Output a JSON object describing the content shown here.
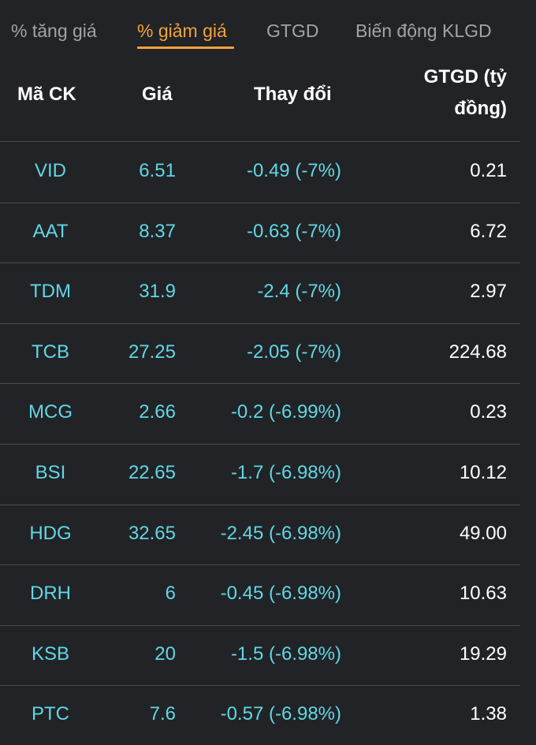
{
  "tabs": [
    {
      "label": "% tăng giá",
      "active": false
    },
    {
      "label": "% giảm giá",
      "active": true
    },
    {
      "label": "GTGD",
      "active": false
    },
    {
      "label": "Biến động KLGD",
      "active": false
    }
  ],
  "colors": {
    "background": "#222326",
    "active_tab": "#f3a33a",
    "inactive_tab": "#a3a4a8",
    "decline": "#5fd8e6",
    "text": "#ffffff",
    "divider": "#4a4b4f"
  },
  "table": {
    "headers": {
      "code": "Mã CK",
      "price": "Giá",
      "change": "Thay đổi",
      "value": "GTGD (tỷ đồng)"
    },
    "rows": [
      {
        "code": "VID",
        "price": "6.51",
        "change": "-0.49 (-7%)",
        "value": "0.21"
      },
      {
        "code": "AAT",
        "price": "8.37",
        "change": "-0.63 (-7%)",
        "value": "6.72"
      },
      {
        "code": "TDM",
        "price": "31.9",
        "change": "-2.4 (-7%)",
        "value": "2.97"
      },
      {
        "code": "TCB",
        "price": "27.25",
        "change": "-2.05 (-7%)",
        "value": "224.68"
      },
      {
        "code": "MCG",
        "price": "2.66",
        "change": "-0.2 (-6.99%)",
        "value": "0.23"
      },
      {
        "code": "BSI",
        "price": "22.65",
        "change": "-1.7 (-6.98%)",
        "value": "10.12"
      },
      {
        "code": "HDG",
        "price": "32.65",
        "change": "-2.45 (-6.98%)",
        "value": "49.00"
      },
      {
        "code": "DRH",
        "price": "6",
        "change": "-0.45 (-6.98%)",
        "value": "10.63"
      },
      {
        "code": "KSB",
        "price": "20",
        "change": "-1.5 (-6.98%)",
        "value": "19.29"
      },
      {
        "code": "PTC",
        "price": "7.6",
        "change": "-0.57 (-6.98%)",
        "value": "1.38"
      }
    ]
  }
}
